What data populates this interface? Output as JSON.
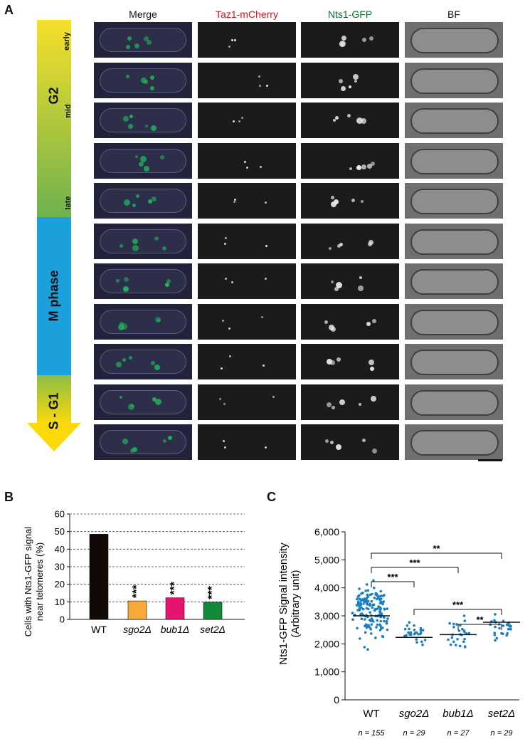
{
  "panelA": {
    "letter": "A",
    "columns": [
      "Merge",
      "Taz1-mCherry",
      "Nts1-GFP",
      "BF"
    ],
    "column_colors": [
      "#111111",
      "#d4141a",
      "#0a6a2a",
      "#111111"
    ],
    "arrow_stages": {
      "g2": "G2",
      "early": "early",
      "mid": "mid",
      "late": "late",
      "m_phase": "M phase",
      "s_g1": "S - G1"
    },
    "rows": 11
  },
  "panelB": {
    "letter": "B",
    "ylabel_line1": "Cells with Nts1-GFP signal",
    "ylabel_line2": "near telomeres (%)",
    "yticks": [
      "0",
      "10",
      "20",
      "30",
      "40",
      "50",
      "60"
    ],
    "categories": [
      "WT",
      "sgo2Δ",
      "bub1Δ",
      "set2Δ"
    ],
    "significance": [
      "",
      "***",
      "***",
      "***"
    ]
  },
  "panelC": {
    "letter": "C",
    "ylabel_line1": "Nts1-GFP Signal intensity",
    "ylabel_line2": "(Arbitrary unit)",
    "yticks": [
      "0",
      "1,000",
      "2,000",
      "3,000",
      "4,000",
      "5,000",
      "6,000"
    ],
    "categories": [
      "WT",
      "sgo2Δ",
      "bub1Δ",
      "set2Δ"
    ],
    "n_labels": [
      "n = 155",
      "n = 29",
      "n = 27",
      "n = 29"
    ],
    "brackets": [
      "***",
      "***",
      "**",
      "***",
      "**"
    ]
  },
  "chart_data": [
    {
      "type": "bar",
      "categories": [
        "WT",
        "sgo2Δ",
        "bub1Δ",
        "set2Δ"
      ],
      "values": [
        48.5,
        10.5,
        12.3,
        9.8
      ],
      "colors": [
        "#120806",
        "#f9a93a",
        "#e5146e",
        "#138a3a"
      ],
      "ylabel": "Cells with Nts1-GFP signal near telomeres (%)",
      "ylim": [
        0,
        60
      ],
      "grid": "dashed horizontal"
    },
    {
      "type": "scatter",
      "categories": [
        "WT",
        "sgo2Δ",
        "bub1Δ",
        "set2Δ"
      ],
      "means": [
        3000,
        2230,
        2330,
        2770
      ],
      "ranges": [
        [
          1750,
          4600
        ],
        [
          1800,
          3000
        ],
        [
          1550,
          3200
        ],
        [
          1850,
          3350
        ]
      ],
      "n": [
        155,
        29,
        27,
        29
      ],
      "ylabel": "Nts1-GFP Signal intensity (Arbitrary unit)",
      "ylim": [
        0,
        6000
      ],
      "point_color": "#1a7fc0"
    }
  ]
}
